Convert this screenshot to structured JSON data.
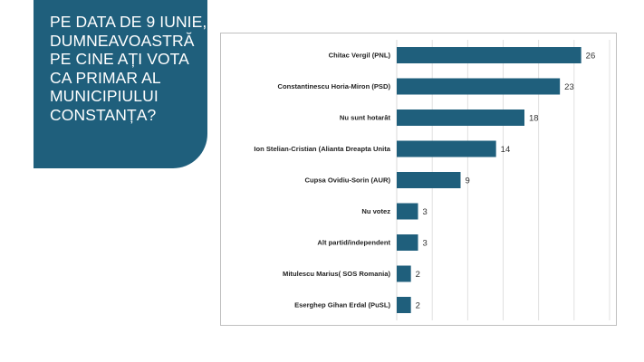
{
  "slide": {
    "question": "PE DATA DE 9 IUNIE, DUMNEAVOASTRĂ PE CINE AȚI VOTA CA PRIMAR AL MUNICIPIULUI CONSTANȚA?",
    "question_lines": [
      "PE DATA DE 9 IUNIE,",
      "DUMNEAVOASTRĂ",
      "PE CINE AȚI VOTA",
      "CA PRIMAR AL",
      "MUNICIPIULUI",
      "CONSTANȚA?"
    ],
    "panel_color": "#1f5f7c"
  },
  "chart_data": {
    "type": "bar",
    "orientation": "horizontal",
    "title": "",
    "xlabel": "",
    "ylabel": "",
    "categories": [
      "Chitac Vergil (PNL)",
      "Constantinescu Horia-Miron (PSD)",
      "Nu sunt hotarât",
      "Ion Stelian-Cristian (Alianta Dreapta Unita",
      "Cupsa Ovidiu-Sorin (AUR)",
      "Nu votez",
      "Alt partid/independent",
      "Mitulescu Marius( SOS Romania)",
      "Eserghep Gihan Erdal (PuSL)"
    ],
    "values": [
      26,
      23,
      18,
      14,
      9,
      3,
      3,
      2,
      2
    ],
    "value_labels": [
      "26",
      "23",
      "18",
      "14",
      "9",
      "3",
      "3",
      "2",
      "2"
    ],
    "xlim": [
      0,
      30
    ],
    "grid": true,
    "legend": "none",
    "bar_color": "#1f5f7c"
  }
}
